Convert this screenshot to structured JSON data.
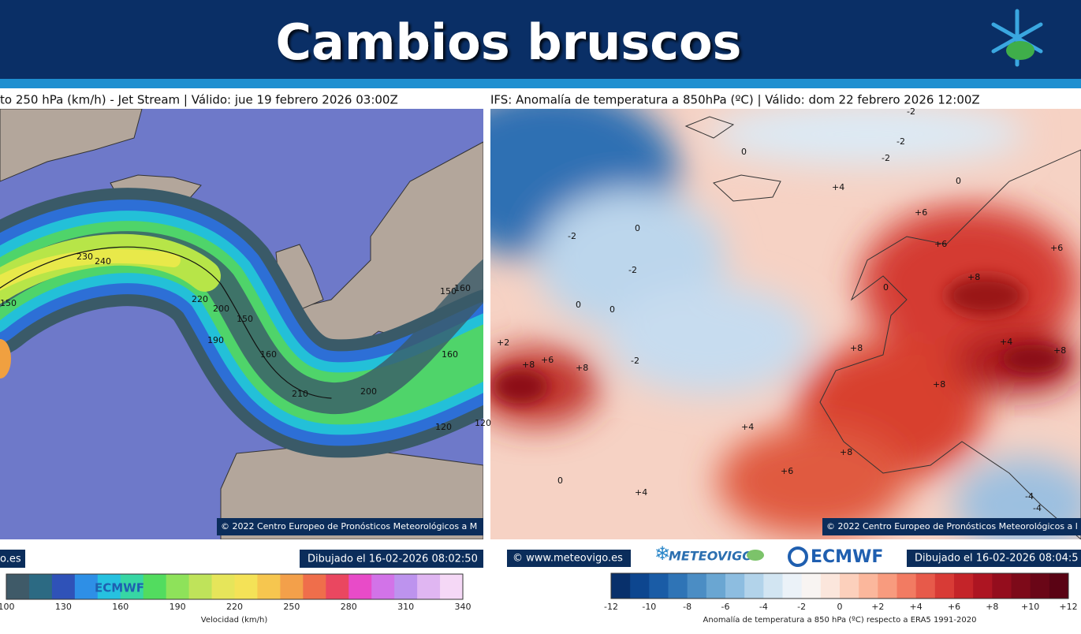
{
  "header": {
    "title": "Cambios bruscos"
  },
  "left_panel": {
    "title": "to 250 hPa (km/h) - Jet Stream | Válido: jue 19 febrero 2026 03:00Z",
    "copyright": "© 2022 Centro Europeo de Pronósticos Meteorológicos a M",
    "site": "o.es",
    "drawn": "Dibujado el 16-02-2026 08:02:50",
    "logo": "ECMWF",
    "contour_labels": [
      "230",
      "240",
      "220",
      "200",
      "150",
      "190",
      "160",
      "210",
      "200",
      "150",
      "160",
      "160",
      "120",
      "120",
      "150"
    ],
    "colorbar": {
      "ticks": [
        "100",
        "130",
        "160",
        "190",
        "220",
        "250",
        "280",
        "310",
        "340"
      ],
      "label": "Velocidad (km/h)"
    }
  },
  "right_panel": {
    "title": "IFS: Anomalía de temperatura a 850hPa  (ºC) | Válido: dom 22 febrero 2026 12:00Z",
    "copyright": "© 2022 Centro Europeo de Pronósticos Meteorológicos a l",
    "site": "© www.meteovigo.es",
    "brand": "METEOVIGO",
    "logo": "ECMWF",
    "drawn": "Dibujado el 16-02-2026 08:04:5",
    "contour_labels": [
      "-2",
      "-2",
      "-2",
      "0",
      "0",
      "+4",
      "0",
      "+6",
      "+6",
      "-2",
      "0",
      "-2",
      "0",
      "0",
      "+6",
      "+8",
      "+8",
      "+4",
      "+8",
      "+8",
      "+6",
      "+8",
      "-2",
      "+2",
      "+8",
      "+4",
      "+8",
      "+4",
      "+6",
      "0",
      "-4",
      "-4"
    ],
    "colorbar": {
      "ticks": [
        "-12",
        "-10",
        "-8",
        "-6",
        "-4",
        "-2",
        "0",
        "+2",
        "+4",
        "+6",
        "+8",
        "+10",
        "+12"
      ],
      "label": "Anomalía de temperatura a 850 hPa (ºC) respecto a ERA5 1991-2020"
    }
  }
}
